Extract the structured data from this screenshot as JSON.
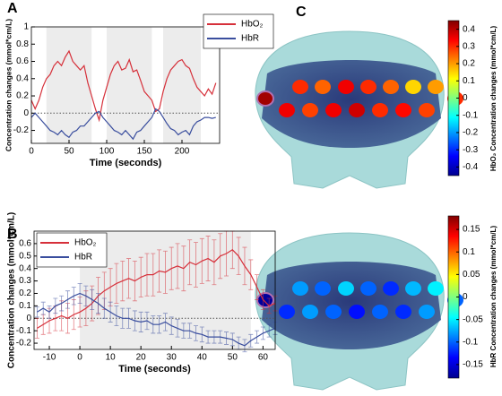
{
  "chart_data": [
    {
      "type": "line",
      "panel": "A",
      "x_label": "Time (seconds)",
      "y_label": "Concentration changes (mmol*cm/L)",
      "xlim": [
        0,
        250
      ],
      "xticks": [
        0,
        50,
        100,
        150,
        200
      ],
      "ylim": [
        -0.35,
        1
      ],
      "yticks": [
        -0.2,
        0,
        0.2,
        0.4,
        0.6,
        0.8,
        1
      ],
      "shaded": [
        [
          20,
          80
        ],
        [
          100,
          160
        ],
        [
          175,
          225
        ]
      ],
      "legend": "upper right",
      "x": [
        0,
        5,
        10,
        15,
        20,
        25,
        30,
        35,
        40,
        45,
        50,
        55,
        60,
        65,
        70,
        75,
        80,
        85,
        90,
        95,
        100,
        105,
        110,
        115,
        120,
        125,
        130,
        135,
        140,
        145,
        150,
        155,
        160,
        165,
        170,
        175,
        180,
        185,
        190,
        195,
        200,
        205,
        210,
        215,
        220,
        225,
        230,
        235,
        240,
        245
      ],
      "series": [
        {
          "name": "HbO₂",
          "color": "#d6303a",
          "values": [
            0.15,
            0.05,
            0.15,
            0.3,
            0.4,
            0.45,
            0.55,
            0.6,
            0.55,
            0.65,
            0.72,
            0.6,
            0.55,
            0.5,
            0.55,
            0.35,
            0.2,
            0.05,
            -0.08,
            0.15,
            0.3,
            0.45,
            0.55,
            0.6,
            0.5,
            0.52,
            0.62,
            0.48,
            0.5,
            0.38,
            0.25,
            0.2,
            0.15,
            0.02,
            0.05,
            0.25,
            0.4,
            0.5,
            0.55,
            0.6,
            0.62,
            0.55,
            0.52,
            0.4,
            0.3,
            0.25,
            0.2,
            0.28,
            0.22,
            0.35
          ]
        },
        {
          "name": "HbR",
          "color": "#3a4e9e",
          "values": [
            -0.05,
            0,
            -0.05,
            -0.1,
            -0.15,
            -0.2,
            -0.22,
            -0.25,
            -0.2,
            -0.25,
            -0.28,
            -0.22,
            -0.2,
            -0.15,
            -0.15,
            -0.1,
            -0.05,
            0,
            0.02,
            -0.05,
            -0.1,
            -0.15,
            -0.2,
            -0.22,
            -0.25,
            -0.2,
            -0.25,
            -0.3,
            -0.22,
            -0.2,
            -0.15,
            -0.1,
            -0.05,
            0.05,
            0.02,
            -0.05,
            -0.12,
            -0.18,
            -0.2,
            -0.25,
            -0.22,
            -0.2,
            -0.25,
            -0.15,
            -0.1,
            -0.08,
            -0.05,
            -0.05,
            -0.06,
            -0.05
          ]
        }
      ]
    },
    {
      "type": "line",
      "panel": "B",
      "x_label": "Time (seconds)",
      "y_label": "Concentration changes (mmol*cm/L)",
      "xlim": [
        -15,
        64
      ],
      "xticks": [
        -10,
        0,
        10,
        20,
        30,
        40,
        50,
        60
      ],
      "ylim": [
        -0.25,
        0.7
      ],
      "yticks": [
        -0.2,
        -0.1,
        0,
        0.1,
        0.2,
        0.3,
        0.4,
        0.5,
        0.6
      ],
      "shaded": [
        [
          0,
          56
        ]
      ],
      "legend": "upper left",
      "x": [
        -14,
        -12,
        -10,
        -8,
        -6,
        -4,
        -2,
        0,
        2,
        4,
        6,
        8,
        10,
        12,
        14,
        16,
        18,
        20,
        22,
        24,
        26,
        28,
        30,
        32,
        34,
        36,
        38,
        40,
        42,
        44,
        46,
        48,
        50,
        52,
        54,
        56,
        58,
        60,
        62,
        64
      ],
      "series": [
        {
          "name": "HbO₂",
          "color": "#d6303a",
          "values": [
            -0.08,
            -0.05,
            -0.02,
            0,
            0.02,
            0,
            0.03,
            0.05,
            0.08,
            0.12,
            0.18,
            0.22,
            0.25,
            0.28,
            0.3,
            0.32,
            0.3,
            0.33,
            0.35,
            0.35,
            0.38,
            0.37,
            0.4,
            0.42,
            0.4,
            0.45,
            0.43,
            0.46,
            0.48,
            0.45,
            0.5,
            0.52,
            0.55,
            0.5,
            0.42,
            0.35,
            0.25,
            0.15,
            0.1,
            0.12
          ],
          "errors": [
            0.08,
            0.08,
            0.1,
            0.1,
            0.12,
            0.12,
            0.12,
            0.12,
            0.14,
            0.14,
            0.15,
            0.15,
            0.15,
            0.16,
            0.16,
            0.16,
            0.16,
            0.16,
            0.17,
            0.17,
            0.17,
            0.17,
            0.17,
            0.18,
            0.18,
            0.18,
            0.18,
            0.18,
            0.18,
            0.18,
            0.18,
            0.18,
            0.15,
            0.15,
            0.15,
            0.12,
            0.1,
            0.08,
            0.06,
            0.06
          ]
        },
        {
          "name": "HbR",
          "color": "#3a4e9e",
          "values": [
            0.05,
            0.08,
            0.05,
            0.1,
            0.12,
            0.15,
            0.18,
            0.2,
            0.18,
            0.15,
            0.12,
            0.08,
            0.05,
            0.02,
            0,
            0,
            -0.02,
            -0.03,
            -0.02,
            -0.05,
            -0.05,
            -0.03,
            -0.06,
            -0.08,
            -0.1,
            -0.1,
            -0.12,
            -0.13,
            -0.15,
            -0.15,
            -0.15,
            -0.16,
            -0.17,
            -0.2,
            -0.22,
            -0.18,
            -0.15,
            -0.12,
            -0.1,
            -0.08
          ],
          "errors": [
            0.04,
            0.05,
            0.05,
            0.06,
            0.06,
            0.07,
            0.07,
            0.08,
            0.08,
            0.08,
            0.08,
            0.08,
            0.08,
            0.08,
            0.08,
            0.08,
            0.08,
            0.08,
            0.07,
            0.07,
            0.07,
            0.07,
            0.07,
            0.07,
            0.06,
            0.06,
            0.06,
            0.06,
            0.05,
            0.05,
            0.05,
            0.05,
            0.05,
            0.05,
            0.05,
            0.05,
            0.05,
            0.05,
            0.05,
            0.05
          ]
        }
      ]
    },
    {
      "type": "channel_map",
      "panel": "C",
      "colormap": "jet",
      "colorbar_label": "HbO₂ Concentration changes (mmol*cm/L)",
      "clim": [
        -0.45,
        0.45
      ],
      "cticks": [
        0.4,
        0.3,
        0.2,
        0.1,
        0,
        -0.1,
        -0.2,
        -0.3,
        -0.4
      ],
      "values": [
        0.3,
        0.25,
        0.35,
        0.3,
        0.25,
        0.15,
        0.2,
        0.42,
        0.3,
        0.35,
        0.28,
        0.35,
        0.38,
        0.3,
        0.33,
        0.28
      ]
    },
    {
      "type": "channel_map",
      "colormap": "jet",
      "colorbar_label": "HbR Concentration changes (mmol*cm/L)",
      "clim": [
        -0.18,
        0.18
      ],
      "cticks": [
        0.15,
        0.1,
        0.05,
        0,
        -0.05,
        -0.1,
        -0.15
      ],
      "values": [
        -0.08,
        -0.1,
        -0.06,
        -0.1,
        -0.12,
        -0.07,
        -0.05,
        -0.17,
        -0.1,
        -0.12,
        -0.08,
        -0.1,
        -0.13,
        -0.1,
        -0.12,
        -0.08
      ]
    }
  ]
}
